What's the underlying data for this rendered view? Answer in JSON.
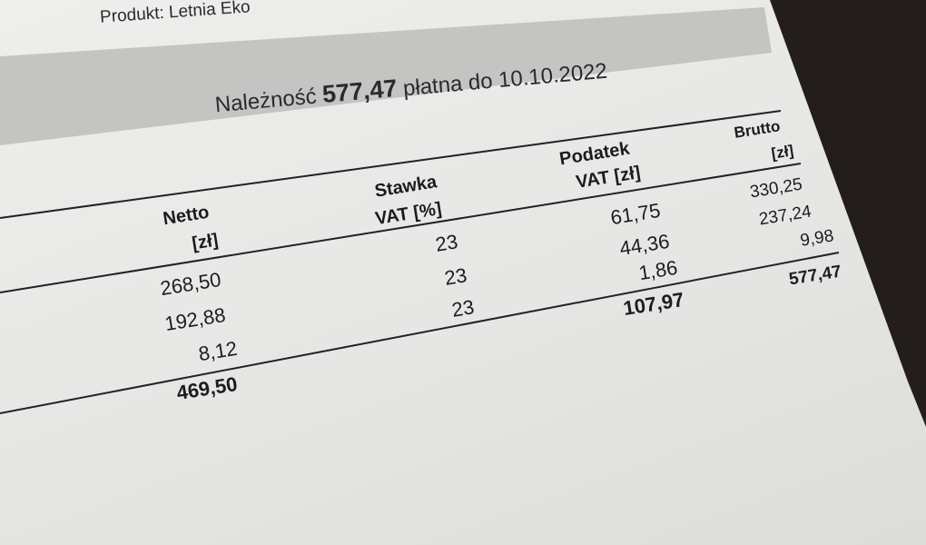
{
  "header": {
    "product_label": "Produkt: Letnia Eko",
    "due_prefix": "Należność",
    "due_amount": "577,47",
    "due_middle": "płatna do",
    "due_date": "10.10.2022"
  },
  "table": {
    "columns": [
      {
        "line1": "Netto",
        "line2": "[zł]"
      },
      {
        "line1": "Stawka",
        "line2": "VAT [%]"
      },
      {
        "line1": "Podatek",
        "line2": "VAT [zł]"
      },
      {
        "line1": "Brutto",
        "line2": "[zł]"
      }
    ],
    "rows": [
      {
        "netto": "268,50",
        "stawka": "23",
        "vat": "61,75",
        "brutto": "330,25"
      },
      {
        "netto": "192,88",
        "stawka": "23",
        "vat": "44,36",
        "brutto": "237,24"
      },
      {
        "netto": "8,12",
        "stawka": "23",
        "vat": "1,86",
        "brutto": "9,98"
      }
    ],
    "totals": {
      "netto": "469,50",
      "vat": "107,97",
      "brutto": "577,47"
    }
  }
}
